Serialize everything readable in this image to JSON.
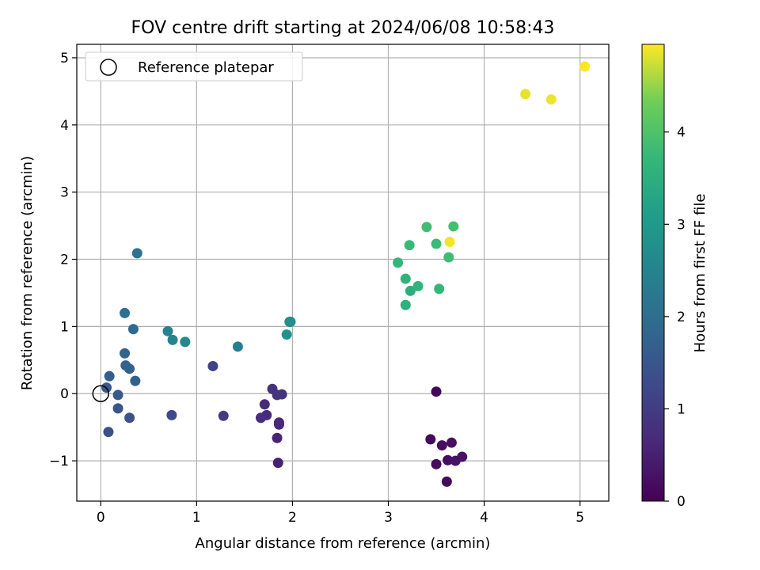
{
  "chart_data": {
    "type": "scatter",
    "title": "FOV centre drift starting at 2024/06/08 10:58:43",
    "xlabel": "Angular distance from reference (arcmin)",
    "ylabel": "Rotation from reference (arcmin)",
    "xlim": [
      -0.25,
      5.3
    ],
    "ylim": [
      -1.6,
      5.2
    ],
    "xticks": [
      0,
      1,
      2,
      3,
      4,
      5
    ],
    "yticks": [
      -1,
      0,
      1,
      2,
      3,
      4,
      5
    ],
    "grid": true,
    "legend": {
      "placement": "top-left",
      "entries": [
        {
          "label": "Reference platepar",
          "marker": "open-circle"
        }
      ]
    },
    "reference_point": {
      "x": 0,
      "y": 0
    },
    "colorbar": {
      "label": "Hours from first FF file",
      "colormap": "viridis",
      "range": [
        0,
        4.95
      ],
      "ticks": [
        0,
        1,
        2,
        3,
        4
      ]
    },
    "series": [
      {
        "points": [
          {
            "x": 3.5,
            "y": 0.03,
            "c": 0.1
          },
          {
            "x": 3.61,
            "y": -1.31,
            "c": 0.12
          },
          {
            "x": 3.44,
            "y": -0.68,
            "c": 0.15
          },
          {
            "x": 3.5,
            "y": -1.05,
            "c": 0.18
          },
          {
            "x": 3.56,
            "y": -0.77,
            "c": 0.2
          },
          {
            "x": 3.62,
            "y": -0.99,
            "c": 0.22
          },
          {
            "x": 3.66,
            "y": -0.73,
            "c": 0.25
          },
          {
            "x": 3.7,
            "y": -1.0,
            "c": 0.27
          },
          {
            "x": 3.77,
            "y": -0.94,
            "c": 0.3
          },
          {
            "x": 1.85,
            "y": -1.03,
            "c": 0.5
          },
          {
            "x": 1.84,
            "y": -0.66,
            "c": 0.55
          },
          {
            "x": 1.86,
            "y": -0.46,
            "c": 0.6
          },
          {
            "x": 1.86,
            "y": -0.43,
            "c": 0.65
          },
          {
            "x": 1.73,
            "y": -0.32,
            "c": 0.7
          },
          {
            "x": 1.71,
            "y": -0.16,
            "c": 0.72
          },
          {
            "x": 1.67,
            "y": -0.36,
            "c": 0.75
          },
          {
            "x": 1.79,
            "y": 0.07,
            "c": 0.8
          },
          {
            "x": 1.84,
            "y": -0.02,
            "c": 0.82
          },
          {
            "x": 1.89,
            "y": -0.01,
            "c": 0.85
          },
          {
            "x": 1.28,
            "y": -0.33,
            "c": 1.0
          },
          {
            "x": 1.17,
            "y": 0.41,
            "c": 1.1
          },
          {
            "x": 0.74,
            "y": -0.32,
            "c": 1.25
          },
          {
            "x": 0.08,
            "y": -0.57,
            "c": 1.4
          },
          {
            "x": 0.3,
            "y": -0.36,
            "c": 1.45
          },
          {
            "x": 0.18,
            "y": -0.22,
            "c": 1.5
          },
          {
            "x": 0.18,
            "y": -0.02,
            "c": 1.55
          },
          {
            "x": 0.06,
            "y": 0.09,
            "c": 1.6
          },
          {
            "x": 0.09,
            "y": 0.26,
            "c": 1.65
          },
          {
            "x": 0.36,
            "y": 0.19,
            "c": 1.7
          },
          {
            "x": 0.3,
            "y": 0.37,
            "c": 1.72
          },
          {
            "x": 0.26,
            "y": 0.42,
            "c": 1.75
          },
          {
            "x": 0.25,
            "y": 0.6,
            "c": 1.8
          },
          {
            "x": 0.34,
            "y": 0.96,
            "c": 1.9
          },
          {
            "x": 0.25,
            "y": 1.2,
            "c": 2.0
          },
          {
            "x": 0.38,
            "y": 2.09,
            "c": 2.1
          },
          {
            "x": 1.43,
            "y": 0.7,
            "c": 2.4
          },
          {
            "x": 0.7,
            "y": 0.93,
            "c": 2.5
          },
          {
            "x": 0.75,
            "y": 0.8,
            "c": 2.55
          },
          {
            "x": 0.88,
            "y": 0.77,
            "c": 2.6
          },
          {
            "x": 1.97,
            "y": 1.07,
            "c": 2.7
          },
          {
            "x": 1.98,
            "y": 1.07,
            "c": 2.75
          },
          {
            "x": 1.94,
            "y": 0.88,
            "c": 2.8
          },
          {
            "x": 3.23,
            "y": 1.53,
            "c": 3.5
          },
          {
            "x": 3.18,
            "y": 1.32,
            "c": 3.55
          },
          {
            "x": 3.18,
            "y": 1.71,
            "c": 3.6
          },
          {
            "x": 3.31,
            "y": 1.6,
            "c": 3.62
          },
          {
            "x": 3.1,
            "y": 1.95,
            "c": 3.65
          },
          {
            "x": 3.53,
            "y": 1.56,
            "c": 3.7
          },
          {
            "x": 3.22,
            "y": 2.21,
            "c": 3.75
          },
          {
            "x": 3.5,
            "y": 2.23,
            "c": 3.8
          },
          {
            "x": 3.63,
            "y": 2.03,
            "c": 3.82
          },
          {
            "x": 3.4,
            "y": 2.48,
            "c": 3.85
          },
          {
            "x": 3.68,
            "y": 2.49,
            "c": 3.9
          },
          {
            "x": 3.64,
            "y": 2.26,
            "c": 4.9
          },
          {
            "x": 4.43,
            "y": 4.46,
            "c": 4.85
          },
          {
            "x": 4.7,
            "y": 4.38,
            "c": 4.88
          },
          {
            "x": 5.05,
            "y": 4.87,
            "c": 4.95
          }
        ]
      }
    ]
  }
}
